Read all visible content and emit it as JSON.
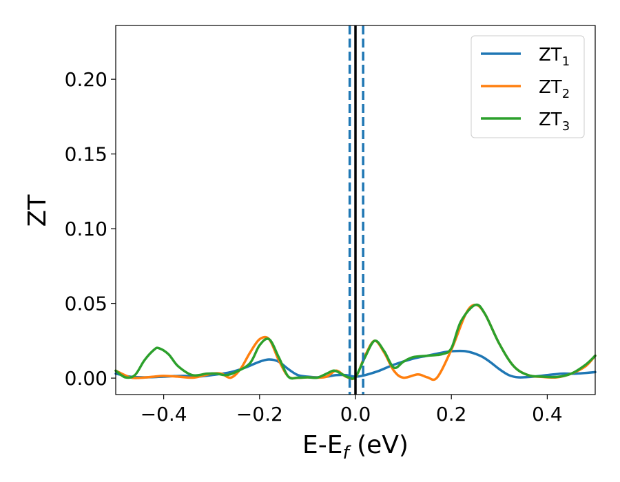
{
  "chart_data": {
    "type": "line",
    "xlabel": "E-E",
    "xlabel_sub": "f",
    "xlabel_unit": " (eV)",
    "ylabel": "ZT",
    "xlim": [
      -0.5,
      0.5
    ],
    "ylim": [
      -0.011,
      0.236
    ],
    "xticks": [
      -0.4,
      -0.2,
      0.0,
      0.2,
      0.4
    ],
    "xtick_labels": [
      "−0.4",
      "−0.2",
      "0.0",
      "0.2",
      "0.4"
    ],
    "yticks": [
      0.0,
      0.05,
      0.1,
      0.15,
      0.2
    ],
    "ytick_labels": [
      "0.00",
      "0.05",
      "0.10",
      "0.15",
      "0.20"
    ],
    "grid": false,
    "legend_position": "top-right",
    "vlines": [
      {
        "x": 0.0,
        "style": "solid",
        "color": "#000000"
      },
      {
        "x": -0.012,
        "style": "dashed",
        "color": "#1f77b4"
      },
      {
        "x": 0.016,
        "style": "dashed",
        "color": "#1f77b4"
      }
    ],
    "series": [
      {
        "name": "ZT",
        "name_sub": "1",
        "color": "#1f77b4",
        "x": [
          -0.5,
          -0.47,
          -0.44,
          -0.4,
          -0.36,
          -0.33,
          -0.3,
          -0.26,
          -0.23,
          -0.2,
          -0.18,
          -0.16,
          -0.14,
          -0.12,
          -0.1,
          -0.08,
          -0.06,
          -0.04,
          -0.02,
          0.0,
          0.02,
          0.05,
          0.08,
          0.12,
          0.15,
          0.18,
          0.2,
          0.23,
          0.26,
          0.28,
          0.3,
          0.32,
          0.34,
          0.37,
          0.4,
          0.43,
          0.46,
          0.5
        ],
        "y": [
          0.003,
          0.001,
          0.0005,
          0.001,
          0.0015,
          0.001,
          0.002,
          0.004,
          0.007,
          0.011,
          0.0125,
          0.011,
          0.006,
          0.002,
          0.001,
          0.0005,
          0.001,
          0.002,
          0.002,
          0.001,
          0.002,
          0.005,
          0.009,
          0.013,
          0.015,
          0.017,
          0.018,
          0.018,
          0.015,
          0.011,
          0.006,
          0.002,
          0.0005,
          0.001,
          0.002,
          0.003,
          0.003,
          0.004
        ]
      },
      {
        "name": "ZT",
        "name_sub": "2",
        "color": "#ff7f0e",
        "x": [
          -0.5,
          -0.47,
          -0.45,
          -0.42,
          -0.4,
          -0.37,
          -0.34,
          -0.32,
          -0.3,
          -0.28,
          -0.26,
          -0.24,
          -0.22,
          -0.2,
          -0.18,
          -0.16,
          -0.14,
          -0.12,
          -0.1,
          -0.08,
          -0.06,
          -0.04,
          -0.02,
          0.0,
          0.02,
          0.04,
          0.06,
          0.08,
          0.1,
          0.13,
          0.15,
          0.17,
          0.2,
          0.23,
          0.25,
          0.27,
          0.3,
          0.33,
          0.36,
          0.39,
          0.42,
          0.45,
          0.48,
          0.5
        ],
        "y": [
          0.005,
          0.0005,
          0.0002,
          0.001,
          0.0015,
          0.001,
          0.0003,
          0.0015,
          0.003,
          0.003,
          0.0003,
          0.006,
          0.017,
          0.026,
          0.026,
          0.012,
          0.001,
          0.0002,
          0.0005,
          0.0003,
          0.001,
          0.005,
          0.001,
          0.0005,
          0.015,
          0.025,
          0.017,
          0.005,
          0.0003,
          0.0025,
          0.0005,
          0.0003,
          0.019,
          0.043,
          0.049,
          0.043,
          0.023,
          0.008,
          0.002,
          0.0008,
          0.0005,
          0.003,
          0.008,
          0.015
        ]
      },
      {
        "name": "ZT",
        "name_sub": "3",
        "color": "#2ca02c",
        "x": [
          -0.5,
          -0.48,
          -0.46,
          -0.44,
          -0.42,
          -0.41,
          -0.39,
          -0.37,
          -0.34,
          -0.31,
          -0.29,
          -0.27,
          -0.25,
          -0.22,
          -0.2,
          -0.18,
          -0.16,
          -0.14,
          -0.12,
          -0.1,
          -0.08,
          -0.06,
          -0.045,
          -0.03,
          -0.015,
          0.0,
          0.02,
          0.04,
          0.06,
          0.08,
          0.1,
          0.12,
          0.15,
          0.18,
          0.2,
          0.22,
          0.25,
          0.27,
          0.3,
          0.33,
          0.36,
          0.39,
          0.42,
          0.45,
          0.48,
          0.5
        ],
        "y": [
          0.005,
          0.0005,
          0.002,
          0.012,
          0.019,
          0.02,
          0.016,
          0.008,
          0.002,
          0.003,
          0.003,
          0.002,
          0.004,
          0.01,
          0.022,
          0.026,
          0.014,
          0.001,
          0.0003,
          0.0005,
          0.0003,
          0.003,
          0.005,
          0.003,
          0.0005,
          0.0008,
          0.014,
          0.025,
          0.018,
          0.007,
          0.011,
          0.014,
          0.015,
          0.016,
          0.02,
          0.038,
          0.049,
          0.043,
          0.023,
          0.008,
          0.002,
          0.001,
          0.0008,
          0.003,
          0.009,
          0.015
        ]
      }
    ]
  }
}
